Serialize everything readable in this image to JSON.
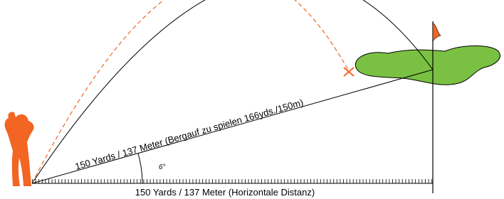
{
  "slope_label": "150 Yards / 137 Meter (Bergauf zu spielen 166yds./150m)",
  "angle_label": "6°",
  "horizontal_label": "150 Yards / 137 Meter (Horizontale Distanz)"
}
